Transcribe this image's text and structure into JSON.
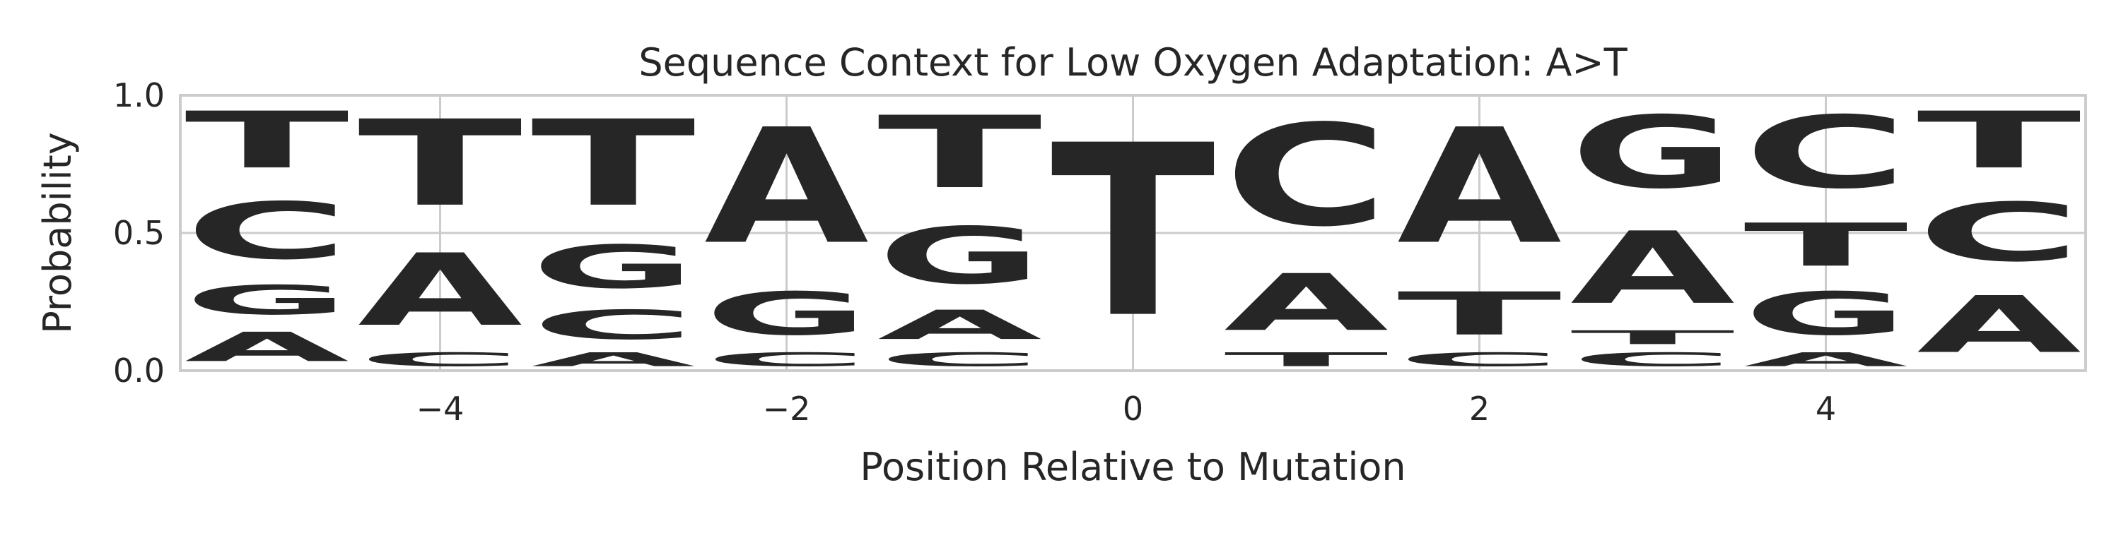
{
  "chart_data": {
    "type": "sequence-logo",
    "title": "Sequence Context for Low Oxygen Adaptation: A>T",
    "xlabel": "Position Relative to Mutation",
    "ylabel": "Probability",
    "xlim": [
      -5.5,
      5.5
    ],
    "ylim": [
      0,
      1
    ],
    "xticks": [
      -4,
      -2,
      0,
      2,
      4
    ],
    "xtick_labels": [
      "−4",
      "−2",
      "0",
      "2",
      "4"
    ],
    "yticks": [
      0,
      0.5,
      1
    ],
    "ytick_labels": [
      "0.0",
      "0.5",
      "1.0"
    ],
    "grid": true,
    "letter_colors": {
      "A": "#008000",
      "C": "#0000ff",
      "G": "#ffa500",
      "T": "#ff0000"
    },
    "positions": [
      -5,
      -4,
      -3,
      -2,
      -1,
      0,
      1,
      2,
      3,
      4,
      5
    ],
    "columns": [
      {
        "position": -5,
        "stack": [
          {
            "base": "A",
            "prob": 0.17
          },
          {
            "base": "G",
            "prob": 0.17
          },
          {
            "base": "C",
            "prob": 0.33
          },
          {
            "base": "T",
            "prob": 0.33
          }
        ]
      },
      {
        "position": -4,
        "stack": [
          {
            "base": "C",
            "prob": 0.08
          },
          {
            "base": "A",
            "prob": 0.42
          },
          {
            "base": "T",
            "prob": 0.5
          }
        ]
      },
      {
        "position": -3,
        "stack": [
          {
            "base": "A",
            "prob": 0.08
          },
          {
            "base": "C",
            "prob": 0.17
          },
          {
            "base": "G",
            "prob": 0.25
          },
          {
            "base": "T",
            "prob": 0.5
          }
        ]
      },
      {
        "position": -2,
        "stack": [
          {
            "base": "C",
            "prob": 0.08
          },
          {
            "base": "G",
            "prob": 0.25
          },
          {
            "base": "A",
            "prob": 0.67
          }
        ]
      },
      {
        "position": -1,
        "stack": [
          {
            "base": "C",
            "prob": 0.08
          },
          {
            "base": "A",
            "prob": 0.17
          },
          {
            "base": "G",
            "prob": 0.33
          },
          {
            "base": "T",
            "prob": 0.42
          }
        ]
      },
      {
        "position": 0,
        "stack": [
          {
            "base": "T",
            "prob": 1.0
          }
        ]
      },
      {
        "position": 1,
        "stack": [
          {
            "base": "T",
            "prob": 0.08
          },
          {
            "base": "A",
            "prob": 0.33
          },
          {
            "base": "C",
            "prob": 0.59
          }
        ]
      },
      {
        "position": 2,
        "stack": [
          {
            "base": "C",
            "prob": 0.08
          },
          {
            "base": "T",
            "prob": 0.25
          },
          {
            "base": "A",
            "prob": 0.67
          }
        ]
      },
      {
        "position": 3,
        "stack": [
          {
            "base": "C",
            "prob": 0.08
          },
          {
            "base": "T",
            "prob": 0.08
          },
          {
            "base": "A",
            "prob": 0.42
          },
          {
            "base": "G",
            "prob": 0.42
          }
        ]
      },
      {
        "position": 4,
        "stack": [
          {
            "base": "A",
            "prob": 0.08
          },
          {
            "base": "G",
            "prob": 0.25
          },
          {
            "base": "T",
            "prob": 0.25
          },
          {
            "base": "C",
            "prob": 0.42
          }
        ]
      },
      {
        "position": 5,
        "stack": [
          {
            "base": "A",
            "prob": 0.33
          },
          {
            "base": "C",
            "prob": 0.34
          },
          {
            "base": "T",
            "prob": 0.33
          }
        ]
      }
    ]
  }
}
